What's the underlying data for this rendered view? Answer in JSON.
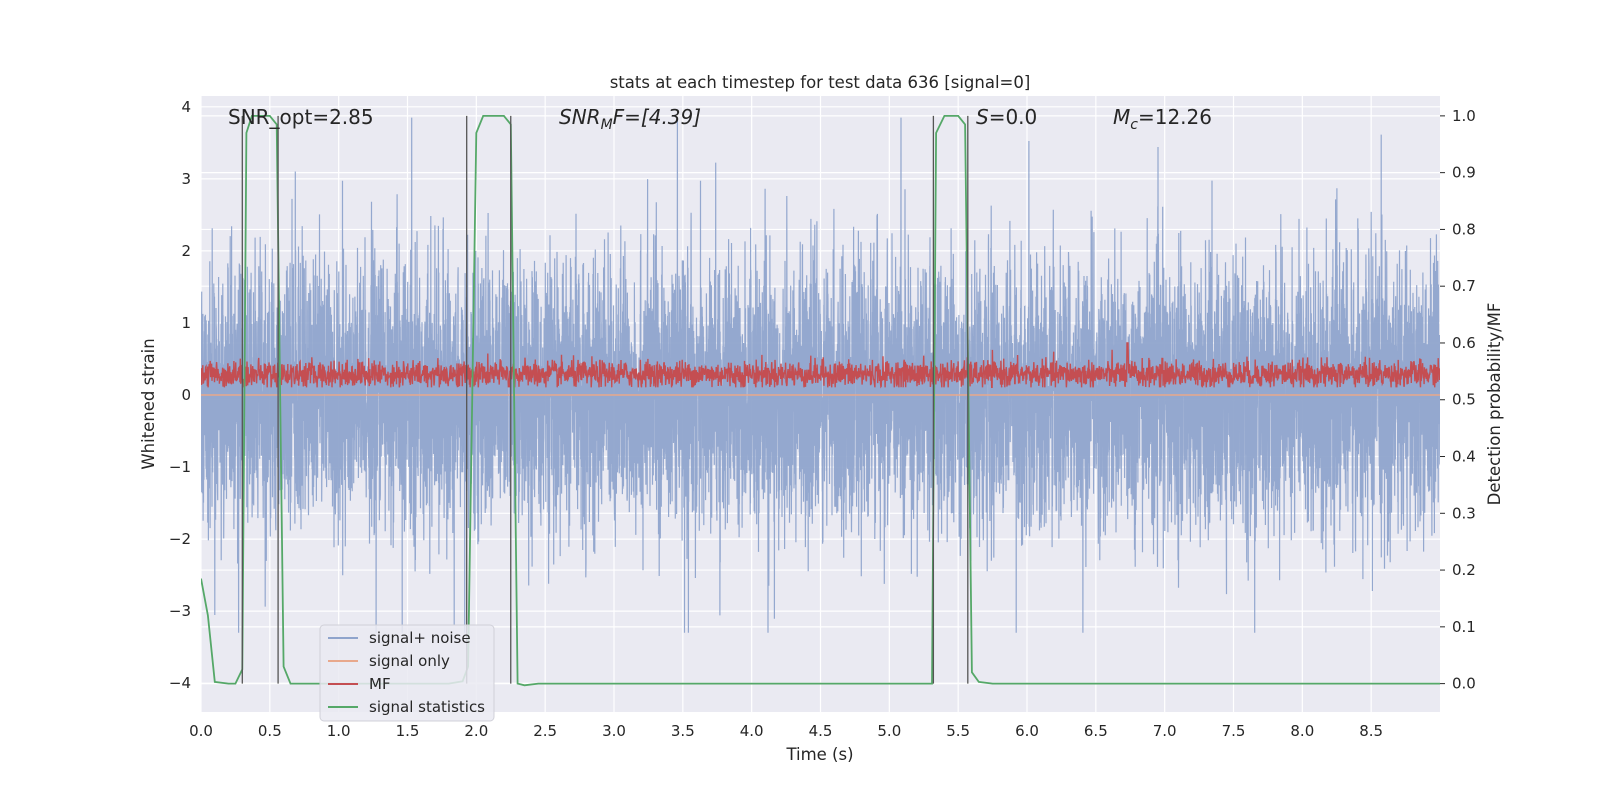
{
  "chart_data": {
    "type": "line",
    "title": "stats at each timestep for test data 636 [signal=0]",
    "xlabel": "Time (s)",
    "ylabel_left": "Whitened strain",
    "ylabel_right": "Detection probability/MF",
    "xlim": [
      0,
      9.0
    ],
    "ylim_left": [
      -4.4,
      4.15
    ],
    "ylim_right": [
      -0.05,
      1.035
    ],
    "x_ticks": [
      0.0,
      0.5,
      1.0,
      1.5,
      2.0,
      2.5,
      3.0,
      3.5,
      4.0,
      4.5,
      5.0,
      5.5,
      6.0,
      6.5,
      7.0,
      7.5,
      8.0,
      8.5
    ],
    "x_tick_labels": [
      "0.0",
      "0.5",
      "1.0",
      "1.5",
      "2.0",
      "2.5",
      "3.0",
      "3.5",
      "4.0",
      "4.5",
      "5.0",
      "5.5",
      "6.0",
      "6.5",
      "7.0",
      "7.5",
      "8.0",
      "8.5"
    ],
    "y_left_ticks": [
      -4,
      -3,
      -2,
      -1,
      0,
      1,
      2,
      3,
      4
    ],
    "y_left_tick_labels": [
      "−4",
      "−3",
      "−2",
      "−1",
      "0",
      "1",
      "2",
      "3",
      "4"
    ],
    "y_right_ticks": [
      0.0,
      0.1,
      0.2,
      0.3,
      0.4,
      0.5,
      0.6,
      0.7,
      0.8,
      0.9,
      1.0
    ],
    "y_right_tick_labels": [
      "0.0",
      "0.1",
      "0.2",
      "0.3",
      "0.4",
      "0.5",
      "0.6",
      "0.7",
      "0.8",
      "0.9",
      "1.0"
    ],
    "grid": true,
    "legend_position": "lower-left",
    "annotations": {
      "snr_opt": "SNR_opt=2.85",
      "snr_mf_main": "SNR",
      "snr_mf_sub": "M",
      "snr_mf_rest": "F=[4.39]",
      "s_main": "S",
      "s_rest": "=0.0",
      "mc_main": "M",
      "mc_sub": "c",
      "mc_rest": "=12.26"
    },
    "detection_windows": [
      [
        0.3,
        0.56
      ],
      [
        1.93,
        2.25
      ],
      [
        5.32,
        5.57
      ]
    ],
    "series": [
      {
        "name": "signal+ noise",
        "color": "#8fa4cc",
        "axis": "left",
        "description_values": {
          "sample_rate_approx": 1000,
          "typical_std": 0.85,
          "range": [
            -3.3,
            3.85
          ]
        }
      },
      {
        "name": "signal only",
        "color": "#e8a88c",
        "axis": "left",
        "x": [
          0.0,
          9.0
        ],
        "y": [
          0.0,
          0.0
        ]
      },
      {
        "name": "MF",
        "color": "#c44e52",
        "axis": "right",
        "description_values": {
          "center": 0.54,
          "range": [
            0.52,
            0.59
          ],
          "peak": [
            6.73,
            0.6
          ]
        }
      },
      {
        "name": "signal statistics",
        "color": "#55a868",
        "axis": "right",
        "x": [
          0.0,
          0.05,
          0.1,
          0.2,
          0.25,
          0.3,
          0.33,
          0.37,
          0.45,
          0.5,
          0.55,
          0.6,
          0.65,
          0.75,
          1.8,
          1.9,
          1.94,
          2.0,
          2.05,
          2.2,
          2.25,
          2.3,
          2.35,
          2.45,
          5.0,
          5.31,
          5.34,
          5.4,
          5.5,
          5.55,
          5.6,
          5.65,
          5.75,
          9.0
        ],
        "y": [
          0.185,
          0.12,
          0.003,
          0.0,
          0.0,
          0.025,
          0.97,
          1.0,
          1.0,
          1.0,
          0.985,
          0.03,
          0.0,
          0.0,
          0.0,
          0.004,
          0.03,
          0.97,
          1.0,
          1.0,
          0.985,
          0.0,
          -0.003,
          0.0,
          0.0,
          0.0,
          0.97,
          1.0,
          1.0,
          0.985,
          0.02,
          0.003,
          0.0,
          0.0
        ]
      }
    ]
  }
}
